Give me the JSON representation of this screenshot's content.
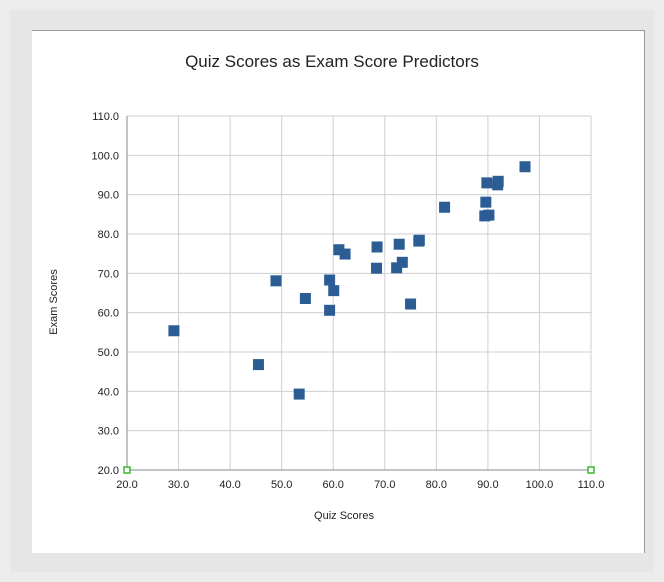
{
  "chart_data": {
    "type": "scatter",
    "title": "Quiz Scores as Exam Score Predictors",
    "xlabel": "Quiz Scores",
    "ylabel": "Exam Scores",
    "xlim": [
      20,
      110
    ],
    "ylim": [
      20,
      110
    ],
    "xticks": [
      "20.0",
      "30.0",
      "40.0",
      "50.0",
      "60.0",
      "70.0",
      "80.0",
      "90.0",
      "100.0",
      "110.0"
    ],
    "yticks": [
      "20.0",
      "30.0",
      "40.0",
      "50.0",
      "60.0",
      "70.0",
      "80.0",
      "90.0",
      "100.0",
      "110.0"
    ],
    "grid": true,
    "legend": "none",
    "colors": {
      "points": "#2b5d94",
      "grid": "#cfcfcf",
      "corner_markers": "#3cb82e"
    },
    "series": [
      {
        "x": [
          29.1,
          45.5,
          48.9,
          53.4,
          54.6,
          59.3,
          59.3,
          60.1,
          61.1,
          62.3,
          68.4,
          68.5,
          72.3,
          72.8,
          73.4,
          75.0,
          76.6,
          76.7,
          81.6,
          89.4,
          89.6,
          89.8,
          90.2,
          91.9,
          92.0,
          97.2
        ],
        "y": [
          55.4,
          46.8,
          68.1,
          39.3,
          63.6,
          60.6,
          68.3,
          65.6,
          76.0,
          74.9,
          71.3,
          76.7,
          71.4,
          77.4,
          72.8,
          62.2,
          78.2,
          78.4,
          86.8,
          84.6,
          88.1,
          93.0,
          84.8,
          92.5,
          93.4,
          97.1
        ]
      }
    ]
  }
}
